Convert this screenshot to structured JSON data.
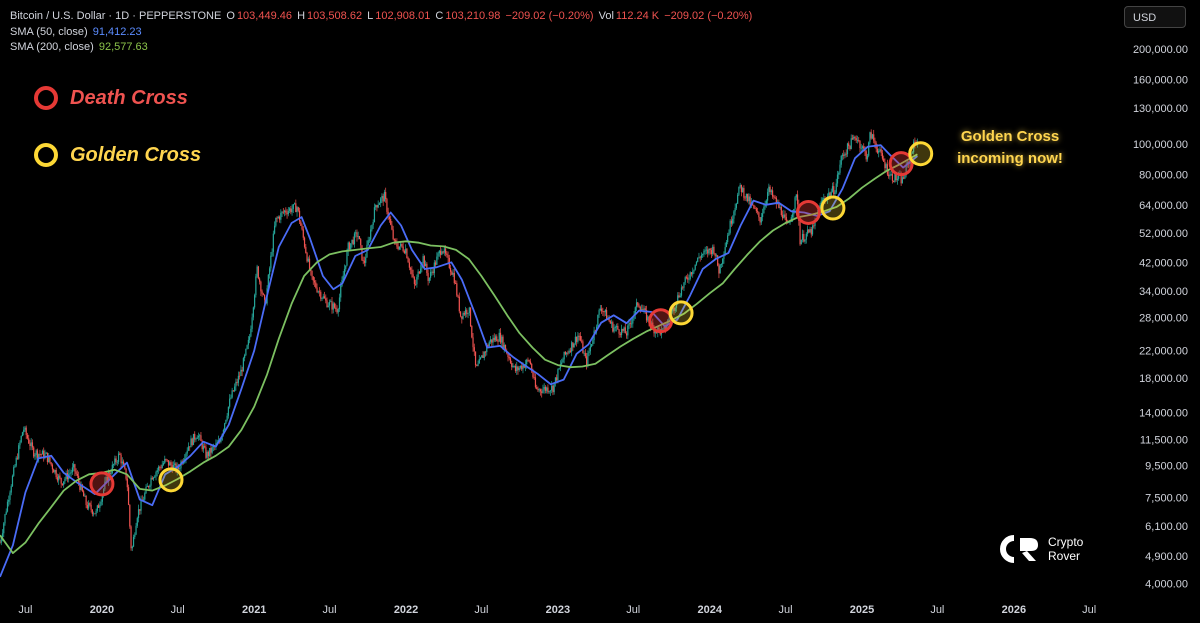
{
  "header": {
    "symbol": "Bitcoin / U.S. Dollar · 1D · PEPPERSTONE",
    "o_label": "O",
    "o_value": "103,449.46",
    "h_label": "H",
    "h_value": "103,508.62",
    "l_label": "L",
    "l_value": "102,908.01",
    "c_label": "C",
    "c_value": "103,210.98",
    "change": "−209.02 (−0.20%)",
    "vol_label": "Vol",
    "vol_value": "112.24 K",
    "vol_change": "−209.02 (−0.20%)",
    "sma50_label": "SMA (50, close)",
    "sma50_value": "91,412.23",
    "sma200_label": "SMA (200, close)",
    "sma200_value": "92,577.63"
  },
  "legend": {
    "death_cross": "Death Cross",
    "golden_cross": "Golden Cross"
  },
  "callout": {
    "line1": "Golden Cross",
    "line2": "incoming now!"
  },
  "currency": "USD",
  "brand": {
    "line1": "Crypto",
    "line2": "Rover"
  },
  "colors": {
    "sma50": "#4a6cf7",
    "sma200": "#7cc061",
    "candle_up": "#26a69a",
    "candle_down": "#ef5350",
    "death_ring": "#e53935",
    "golden_ring": "#fdd835"
  },
  "chart_data": {
    "type": "line",
    "y_scale": "log",
    "ylim": [
      3600,
      230000
    ],
    "y_ticks": [
      4000,
      4900,
      6100,
      7500,
      9500,
      11500,
      14000,
      18000,
      22000,
      28000,
      34000,
      42000,
      52000,
      64000,
      80000,
      100000,
      130000,
      160000,
      200000
    ],
    "y_tick_labels": [
      "4,000.00",
      "4,900.00",
      "6,100.00",
      "7,500.00",
      "9,500.00",
      "11,500.00",
      "14,000.00",
      "18,000.00",
      "22,000.00",
      "28,000.00",
      "34,000.00",
      "42,000.00",
      "52,000.00",
      "64,000.00",
      "80,000.00",
      "100,000.00",
      "130,000.00",
      "160,000.00",
      "200,000.00"
    ],
    "xlim": [
      "2019-05-01",
      "2026-09-01"
    ],
    "x_ticks": [
      {
        "date": "2019-07-01",
        "label": "Jul"
      },
      {
        "date": "2020-01-01",
        "label": "2020"
      },
      {
        "date": "2020-07-01",
        "label": "Jul"
      },
      {
        "date": "2021-01-01",
        "label": "2021"
      },
      {
        "date": "2021-07-01",
        "label": "Jul"
      },
      {
        "date": "2022-01-01",
        "label": "2022"
      },
      {
        "date": "2022-07-01",
        "label": "Jul"
      },
      {
        "date": "2023-01-01",
        "label": "2023"
      },
      {
        "date": "2023-07-01",
        "label": "Jul"
      },
      {
        "date": "2024-01-01",
        "label": "2024"
      },
      {
        "date": "2024-07-01",
        "label": "Jul"
      },
      {
        "date": "2025-01-01",
        "label": "2025"
      },
      {
        "date": "2025-07-01",
        "label": "Jul"
      },
      {
        "date": "2026-01-01",
        "label": "2026"
      },
      {
        "date": "2026-07-01",
        "label": "Jul"
      }
    ],
    "price": [
      [
        "2019-05-01",
        5400
      ],
      [
        "2019-05-25",
        8000
      ],
      [
        "2019-06-26",
        12500
      ],
      [
        "2019-07-20",
        10500
      ],
      [
        "2019-08-20",
        10200
      ],
      [
        "2019-09-25",
        8400
      ],
      [
        "2019-10-26",
        9300
      ],
      [
        "2019-11-25",
        7100
      ],
      [
        "2019-12-18",
        6700
      ],
      [
        "2020-01-15",
        8800
      ],
      [
        "2020-02-12",
        10300
      ],
      [
        "2020-03-01",
        8600
      ],
      [
        "2020-03-12",
        5000
      ],
      [
        "2020-03-25",
        6600
      ],
      [
        "2020-04-30",
        8800
      ],
      [
        "2020-06-01",
        9800
      ],
      [
        "2020-07-01",
        9200
      ],
      [
        "2020-07-27",
        11000
      ],
      [
        "2020-08-17",
        12000
      ],
      [
        "2020-09-08",
        10200
      ],
      [
        "2020-10-10",
        11300
      ],
      [
        "2020-11-05",
        15500
      ],
      [
        "2020-12-01",
        19000
      ],
      [
        "2020-12-20",
        23800
      ],
      [
        "2021-01-08",
        40000
      ],
      [
        "2021-01-27",
        30500
      ],
      [
        "2021-02-21",
        57000
      ],
      [
        "2021-03-14",
        61000
      ],
      [
        "2021-04-14",
        63000
      ],
      [
        "2021-05-19",
        37000
      ],
      [
        "2021-06-22",
        31500
      ],
      [
        "2021-07-20",
        29800
      ],
      [
        "2021-08-15",
        47000
      ],
      [
        "2021-09-07",
        52000
      ],
      [
        "2021-09-21",
        41000
      ],
      [
        "2021-10-20",
        64000
      ],
      [
        "2021-11-10",
        68000
      ],
      [
        "2021-12-04",
        48000
      ],
      [
        "2021-12-31",
        46300
      ],
      [
        "2022-01-22",
        35000
      ],
      [
        "2022-02-10",
        44000
      ],
      [
        "2022-02-24",
        37000
      ],
      [
        "2022-03-28",
        47000
      ],
      [
        "2022-04-26",
        38000
      ],
      [
        "2022-05-12",
        28500
      ],
      [
        "2022-06-01",
        30000
      ],
      [
        "2022-06-18",
        19000
      ],
      [
        "2022-07-20",
        23500
      ],
      [
        "2022-08-14",
        24500
      ],
      [
        "2022-09-20",
        19000
      ],
      [
        "2022-10-25",
        20500
      ],
      [
        "2022-11-09",
        16500
      ],
      [
        "2022-12-20",
        16800
      ],
      [
        "2023-01-14",
        20900
      ],
      [
        "2023-02-20",
        24800
      ],
      [
        "2023-03-10",
        20100
      ],
      [
        "2023-04-14",
        30500
      ],
      [
        "2023-05-12",
        26200
      ],
      [
        "2023-06-15",
        25000
      ],
      [
        "2023-07-13",
        31400
      ],
      [
        "2023-08-17",
        26000
      ],
      [
        "2023-09-11",
        25100
      ],
      [
        "2023-10-24",
        34500
      ],
      [
        "2023-12-08",
        44000
      ],
      [
        "2024-01-11",
        46500
      ],
      [
        "2024-01-23",
        39500
      ],
      [
        "2024-02-28",
        62000
      ],
      [
        "2024-03-14",
        73000
      ],
      [
        "2024-05-01",
        57500
      ],
      [
        "2024-05-21",
        71500
      ],
      [
        "2024-06-24",
        60000
      ],
      [
        "2024-07-05",
        54000
      ],
      [
        "2024-07-29",
        69000
      ],
      [
        "2024-08-05",
        49500
      ],
      [
        "2024-09-06",
        53500
      ],
      [
        "2024-09-27",
        66000
      ],
      [
        "2024-10-29",
        72500
      ],
      [
        "2024-11-13",
        91000
      ],
      [
        "2024-12-17",
        106000
      ],
      [
        "2025-01-13",
        91000
      ],
      [
        "2025-01-21",
        108000
      ],
      [
        "2025-02-25",
        86000
      ],
      [
        "2025-03-10",
        79000
      ],
      [
        "2025-04-09",
        76500
      ],
      [
        "2025-05-02",
        97000
      ],
      [
        "2025-05-14",
        103200
      ]
    ],
    "series": [
      {
        "name": "SMA (50, close)",
        "points": [
          [
            "2019-05-01",
            4200
          ],
          [
            "2019-06-01",
            5300
          ],
          [
            "2019-07-01",
            7800
          ],
          [
            "2019-08-01",
            10000
          ],
          [
            "2019-09-01",
            10200
          ],
          [
            "2019-10-01",
            9000
          ],
          [
            "2019-11-01",
            8400
          ],
          [
            "2019-12-15",
            7700
          ],
          [
            "2020-02-01",
            8900
          ],
          [
            "2020-03-01",
            9700
          ],
          [
            "2020-04-01",
            7400
          ],
          [
            "2020-05-01",
            7100
          ],
          [
            "2020-06-01",
            8900
          ],
          [
            "2020-07-01",
            9400
          ],
          [
            "2020-08-01",
            10200
          ],
          [
            "2020-09-01",
            11300
          ],
          [
            "2020-10-01",
            10900
          ],
          [
            "2020-11-01",
            12800
          ],
          [
            "2020-12-01",
            16600
          ],
          [
            "2021-01-01",
            22000
          ],
          [
            "2021-02-01",
            33000
          ],
          [
            "2021-03-01",
            47000
          ],
          [
            "2021-04-01",
            56000
          ],
          [
            "2021-04-25",
            58500
          ],
          [
            "2021-05-15",
            50000
          ],
          [
            "2021-06-15",
            38000
          ],
          [
            "2021-07-10",
            34500
          ],
          [
            "2021-08-01",
            36000
          ],
          [
            "2021-09-01",
            44000
          ],
          [
            "2021-10-01",
            46000
          ],
          [
            "2021-11-01",
            55000
          ],
          [
            "2021-11-25",
            60500
          ],
          [
            "2021-12-20",
            55000
          ],
          [
            "2022-01-15",
            46000
          ],
          [
            "2022-02-15",
            40000
          ],
          [
            "2022-03-15",
            40500
          ],
          [
            "2022-04-20",
            42000
          ],
          [
            "2022-05-15",
            37000
          ],
          [
            "2022-06-15",
            29000
          ],
          [
            "2022-07-15",
            22500
          ],
          [
            "2022-08-15",
            22800
          ],
          [
            "2022-09-15",
            21000
          ],
          [
            "2022-10-15",
            19700
          ],
          [
            "2022-11-15",
            18500
          ],
          [
            "2022-12-15",
            17200
          ],
          [
            "2023-01-15",
            17800
          ],
          [
            "2023-02-15",
            21500
          ],
          [
            "2023-03-15",
            23000
          ],
          [
            "2023-04-15",
            27000
          ],
          [
            "2023-05-15",
            28500
          ],
          [
            "2023-06-15",
            26900
          ],
          [
            "2023-07-15",
            29500
          ],
          [
            "2023-08-15",
            29200
          ],
          [
            "2023-09-15",
            26300
          ],
          [
            "2023-10-15",
            27600
          ],
          [
            "2023-11-15",
            33000
          ],
          [
            "2023-12-15",
            40000
          ],
          [
            "2024-01-15",
            43000
          ],
          [
            "2024-02-15",
            45000
          ],
          [
            "2024-03-15",
            55000
          ],
          [
            "2024-04-15",
            66000
          ],
          [
            "2024-05-15",
            64000
          ],
          [
            "2024-06-15",
            65000
          ],
          [
            "2024-07-15",
            61000
          ],
          [
            "2024-08-15",
            60500
          ],
          [
            "2024-09-15",
            59000
          ],
          [
            "2024-10-15",
            61000
          ],
          [
            "2024-11-15",
            72000
          ],
          [
            "2024-12-15",
            90000
          ],
          [
            "2025-01-15",
            98000
          ],
          [
            "2025-02-15",
            99000
          ],
          [
            "2025-03-10",
            92000
          ],
          [
            "2025-04-10",
            84000
          ],
          [
            "2025-05-14",
            91412
          ]
        ]
      },
      {
        "name": "SMA (200, close)",
        "points": [
          [
            "2019-05-01",
            5700
          ],
          [
            "2019-06-01",
            5000
          ],
          [
            "2019-07-01",
            5400
          ],
          [
            "2019-08-01",
            6200
          ],
          [
            "2019-09-01",
            7000
          ],
          [
            "2019-10-01",
            7900
          ],
          [
            "2019-11-01",
            8500
          ],
          [
            "2019-12-01",
            8900
          ],
          [
            "2020-01-01",
            9000
          ],
          [
            "2020-02-01",
            9200
          ],
          [
            "2020-03-01",
            8900
          ],
          [
            "2020-04-01",
            8000
          ],
          [
            "2020-05-01",
            7900
          ],
          [
            "2020-06-01",
            8200
          ],
          [
            "2020-07-01",
            8600
          ],
          [
            "2020-08-01",
            9100
          ],
          [
            "2020-09-01",
            9700
          ],
          [
            "2020-10-01",
            10200
          ],
          [
            "2020-11-01",
            10900
          ],
          [
            "2020-12-01",
            12300
          ],
          [
            "2021-01-01",
            14600
          ],
          [
            "2021-02-01",
            18500
          ],
          [
            "2021-03-01",
            24000
          ],
          [
            "2021-04-01",
            31000
          ],
          [
            "2021-05-01",
            38000
          ],
          [
            "2021-06-01",
            42000
          ],
          [
            "2021-07-01",
            44500
          ],
          [
            "2021-08-01",
            45500
          ],
          [
            "2021-09-01",
            46000
          ],
          [
            "2021-10-01",
            46500
          ],
          [
            "2021-11-01",
            47000
          ],
          [
            "2021-12-01",
            48500
          ],
          [
            "2022-01-01",
            49000
          ],
          [
            "2022-02-01",
            48500
          ],
          [
            "2022-03-01",
            47500
          ],
          [
            "2022-04-01",
            47200
          ],
          [
            "2022-05-01",
            46000
          ],
          [
            "2022-06-01",
            43000
          ],
          [
            "2022-07-01",
            38000
          ],
          [
            "2022-08-01",
            33000
          ],
          [
            "2022-09-01",
            28500
          ],
          [
            "2022-10-01",
            25000
          ],
          [
            "2022-11-01",
            22500
          ],
          [
            "2022-12-01",
            20600
          ],
          [
            "2023-01-01",
            19800
          ],
          [
            "2023-02-01",
            19500
          ],
          [
            "2023-03-01",
            19600
          ],
          [
            "2023-04-01",
            20000
          ],
          [
            "2023-05-01",
            21300
          ],
          [
            "2023-06-01",
            22700
          ],
          [
            "2023-07-01",
            24000
          ],
          [
            "2023-08-01",
            25300
          ],
          [
            "2023-09-01",
            26400
          ],
          [
            "2023-10-01",
            27500
          ],
          [
            "2023-11-01",
            28900
          ],
          [
            "2023-12-01",
            31000
          ],
          [
            "2024-01-01",
            33500
          ],
          [
            "2024-02-01",
            36000
          ],
          [
            "2024-03-01",
            40000
          ],
          [
            "2024-04-01",
            44500
          ],
          [
            "2024-05-01",
            49000
          ],
          [
            "2024-06-01",
            53000
          ],
          [
            "2024-07-01",
            56000
          ],
          [
            "2024-08-01",
            58500
          ],
          [
            "2024-09-01",
            59500
          ],
          [
            "2024-10-01",
            61000
          ],
          [
            "2024-11-01",
            63000
          ],
          [
            "2024-12-01",
            67000
          ],
          [
            "2025-01-01",
            72500
          ],
          [
            "2025-02-01",
            77500
          ],
          [
            "2025-03-01",
            82000
          ],
          [
            "2025-04-01",
            86000
          ],
          [
            "2025-05-14",
            92578
          ]
        ]
      }
    ],
    "markers": [
      {
        "type": "death",
        "date": "2020-01-01",
        "price": 8300
      },
      {
        "type": "golden",
        "date": "2020-06-15",
        "price": 8550
      },
      {
        "type": "death",
        "date": "2023-09-05",
        "price": 27400
      },
      {
        "type": "golden",
        "date": "2023-10-24",
        "price": 29000
      },
      {
        "type": "death",
        "date": "2024-08-25",
        "price": 60500
      },
      {
        "type": "golden",
        "date": "2024-10-23",
        "price": 62500
      },
      {
        "type": "death",
        "date": "2025-04-05",
        "price": 86500
      },
      {
        "type": "golden",
        "date": "2025-05-22",
        "price": 93000
      }
    ]
  }
}
